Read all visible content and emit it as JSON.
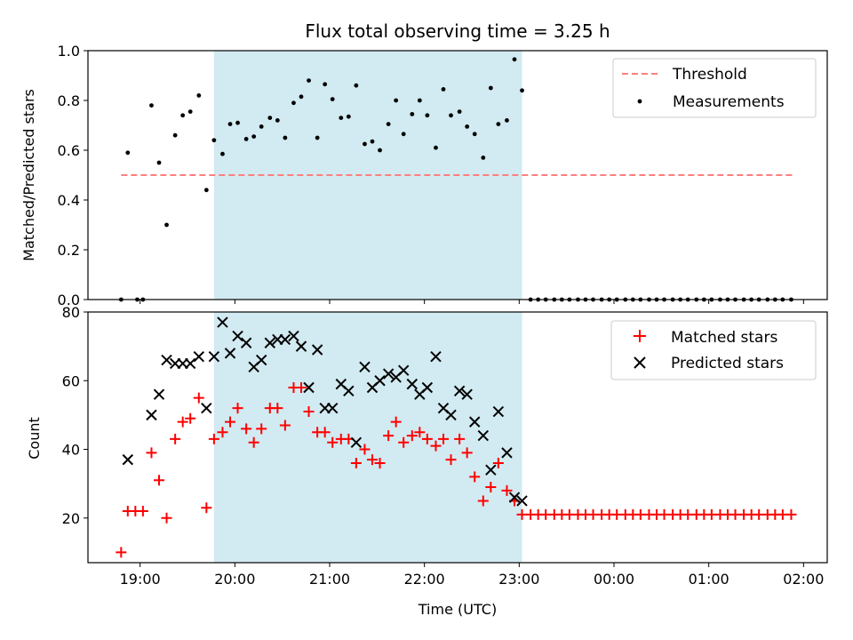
{
  "chart_data": [
    {
      "type": "scatter",
      "title": "Flux total observing time = 3.25 h",
      "ylabel": "Matched/Predicted stars",
      "xlabel": "",
      "xlim": [
        18.45,
        26.25
      ],
      "ylim": [
        0,
        1.0
      ],
      "yticks": [
        0.0,
        0.2,
        0.4,
        0.6,
        0.8,
        1.0
      ],
      "ytick_labels": [
        "0.0",
        "0.2",
        "0.4",
        "0.6",
        "0.8",
        "1.0"
      ],
      "xticks": [
        19,
        20,
        21,
        22,
        23,
        24,
        25,
        26
      ],
      "xtick_labels_shown": false,
      "shaded_span": {
        "x_start": 19.78,
        "x_end": 23.03,
        "color": "#add8e6"
      },
      "threshold": {
        "name": "Threshold",
        "value": 0.5,
        "x_start": 18.8,
        "x_end": 25.9,
        "color": "#ff7f7f"
      },
      "measurements": {
        "name": "Measurements",
        "color": "#000000",
        "x": [
          18.8,
          18.87,
          18.97,
          19.03,
          19.12,
          19.2,
          19.28,
          19.37,
          19.45,
          19.53,
          19.62,
          19.7,
          19.78,
          19.87,
          19.95,
          20.03,
          20.12,
          20.2,
          20.28,
          20.37,
          20.45,
          20.53,
          20.62,
          20.7,
          20.78,
          20.87,
          20.95,
          21.03,
          21.12,
          21.2,
          21.28,
          21.37,
          21.45,
          21.53,
          21.62,
          21.7,
          21.78,
          21.87,
          21.95,
          22.03,
          22.12,
          22.2,
          22.28,
          22.37,
          22.45,
          22.53,
          22.62,
          22.7,
          22.78,
          22.87,
          22.95,
          23.03,
          23.12,
          23.2,
          23.28,
          23.37,
          23.45,
          23.53,
          23.62,
          23.7,
          23.78,
          23.87,
          23.95,
          24.03,
          24.12,
          24.2,
          24.28,
          24.37,
          24.45,
          24.53,
          24.62,
          24.7,
          24.78,
          24.87,
          24.95,
          25.03,
          25.12,
          25.2,
          25.28,
          25.37,
          25.45,
          25.53,
          25.62,
          25.7,
          25.78,
          25.87
        ],
        "y": [
          0.0,
          0.59,
          0.0,
          0.0,
          0.78,
          0.55,
          0.3,
          0.66,
          0.74,
          0.755,
          0.82,
          0.44,
          0.64,
          0.585,
          0.705,
          0.71,
          0.645,
          0.655,
          0.695,
          0.73,
          0.72,
          0.65,
          0.79,
          0.815,
          0.88,
          0.65,
          0.865,
          0.805,
          0.73,
          0.735,
          0.86,
          0.625,
          0.635,
          0.6,
          0.705,
          0.8,
          0.665,
          0.745,
          0.8,
          0.74,
          0.61,
          0.845,
          0.74,
          0.755,
          0.695,
          0.665,
          0.57,
          0.85,
          0.705,
          0.72,
          0.965,
          0.84,
          0.0,
          0.0,
          0.0,
          0.0,
          0.0,
          0.0,
          0.0,
          0.0,
          0.0,
          0.0,
          0.0,
          0.0,
          0.0,
          0.0,
          0.0,
          0.0,
          0.0,
          0.0,
          0.0,
          0.0,
          0.0,
          0.0,
          0.0,
          0.0,
          0.0,
          0.0,
          0.0,
          0.0,
          0.0,
          0.0,
          0.0,
          0.0,
          0.0,
          0.0
        ]
      },
      "legend": {
        "placement": "upper-right",
        "entries": [
          "Threshold",
          "Measurements"
        ]
      }
    },
    {
      "type": "scatter",
      "title": "",
      "xlabel": "Time (UTC)",
      "ylabel": "Count",
      "xlim": [
        18.45,
        26.25
      ],
      "ylim": [
        7,
        80
      ],
      "yticks": [
        20,
        40,
        60,
        80
      ],
      "ytick_labels": [
        "20",
        "40",
        "60",
        "80"
      ],
      "xticks": [
        19,
        20,
        21,
        22,
        23,
        24,
        25,
        26
      ],
      "xtick_labels": [
        "19:00",
        "20:00",
        "21:00",
        "22:00",
        "23:00",
        "00:00",
        "01:00",
        "02:00"
      ],
      "shaded_span": {
        "x_start": 19.78,
        "x_end": 23.03,
        "color": "#add8e6"
      },
      "matched": {
        "name": "Matched stars",
        "marker": "+",
        "color": "#ff0000",
        "x": [
          18.8,
          18.87,
          18.95,
          19.03,
          19.12,
          19.2,
          19.28,
          19.37,
          19.45,
          19.53,
          19.62,
          19.7,
          19.78,
          19.87,
          19.95,
          20.03,
          20.12,
          20.2,
          20.28,
          20.37,
          20.45,
          20.53,
          20.62,
          20.7,
          20.78,
          20.87,
          20.95,
          21.03,
          21.12,
          21.2,
          21.28,
          21.37,
          21.45,
          21.53,
          21.62,
          21.7,
          21.78,
          21.87,
          21.95,
          22.03,
          22.12,
          22.2,
          22.28,
          22.37,
          22.45,
          22.53,
          22.62,
          22.7,
          22.78,
          22.87,
          22.95,
          23.03,
          23.12,
          23.2,
          23.28,
          23.37,
          23.45,
          23.53,
          23.62,
          23.7,
          23.78,
          23.87,
          23.95,
          24.03,
          24.12,
          24.2,
          24.28,
          24.37,
          24.45,
          24.53,
          24.62,
          24.7,
          24.78,
          24.87,
          24.95,
          25.03,
          25.12,
          25.2,
          25.28,
          25.37,
          25.45,
          25.53,
          25.62,
          25.7,
          25.78,
          25.87
        ],
        "y": [
          10,
          22,
          22,
          22,
          39,
          31,
          20,
          43,
          48,
          49,
          55,
          23,
          43,
          45,
          48,
          52,
          46,
          42,
          46,
          52,
          52,
          47,
          58,
          58,
          51,
          45,
          45,
          42,
          43,
          43,
          36,
          40,
          37,
          36,
          44,
          48,
          42,
          44,
          45,
          43,
          41,
          43,
          37,
          43,
          39,
          32,
          25,
          29,
          36,
          28,
          25,
          21,
          21,
          21,
          21,
          21,
          21,
          21,
          21,
          21,
          21,
          21,
          21,
          21,
          21,
          21,
          21,
          21,
          21,
          21,
          21,
          21,
          21,
          21,
          21,
          21,
          21,
          21,
          21,
          21,
          21,
          21,
          21,
          21,
          21,
          21
        ]
      },
      "predicted": {
        "name": "Predicted stars",
        "marker": "x",
        "color": "#000000",
        "x": [
          18.87,
          19.12,
          19.2,
          19.28,
          19.37,
          19.45,
          19.53,
          19.62,
          19.7,
          19.78,
          19.87,
          19.95,
          20.03,
          20.12,
          20.2,
          20.28,
          20.37,
          20.45,
          20.53,
          20.62,
          20.7,
          20.78,
          20.87,
          20.95,
          21.03,
          21.12,
          21.2,
          21.28,
          21.37,
          21.45,
          21.53,
          21.62,
          21.7,
          21.78,
          21.87,
          21.95,
          22.03,
          22.12,
          22.2,
          22.28,
          22.37,
          22.45,
          22.53,
          22.62,
          22.7,
          22.78,
          22.87,
          22.95,
          23.03
        ],
        "y": [
          37,
          50,
          56,
          66,
          65,
          65,
          65,
          67,
          52,
          67,
          77,
          68,
          73,
          71,
          64,
          66,
          71,
          72,
          72,
          73,
          70,
          58,
          69,
          52,
          52,
          59,
          57,
          42,
          64,
          58,
          60,
          62,
          61,
          63,
          59,
          56,
          58,
          67,
          52,
          50,
          57,
          56,
          48,
          44,
          34,
          51,
          39,
          26,
          25
        ]
      },
      "legend": {
        "placement": "upper-right",
        "entries": [
          "Matched stars",
          "Predicted stars"
        ]
      }
    }
  ]
}
